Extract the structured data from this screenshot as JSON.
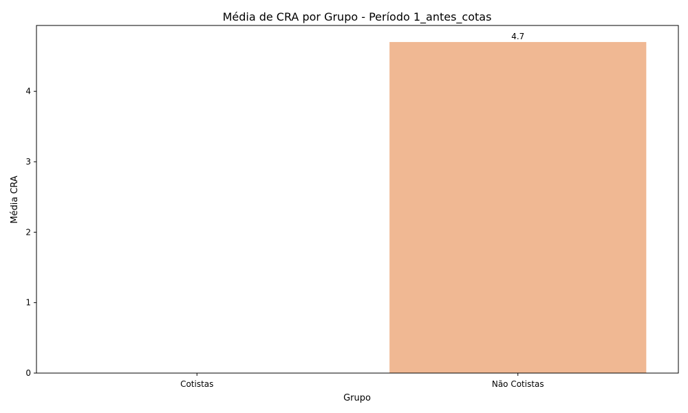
{
  "chart_data": {
    "type": "bar",
    "title": "Média de CRA por Grupo - Período 1_antes_cotas",
    "xlabel": "Grupo",
    "ylabel": "Média CRA",
    "categories": [
      "Cotistas",
      "Não Cotistas"
    ],
    "values": [
      null,
      4.7
    ],
    "data_labels": [
      "",
      "4.7"
    ],
    "ylim": [
      0,
      4.935
    ],
    "yticks": [
      0,
      1,
      2,
      3,
      4
    ],
    "grid": false,
    "bar_color": "#f0b893"
  }
}
